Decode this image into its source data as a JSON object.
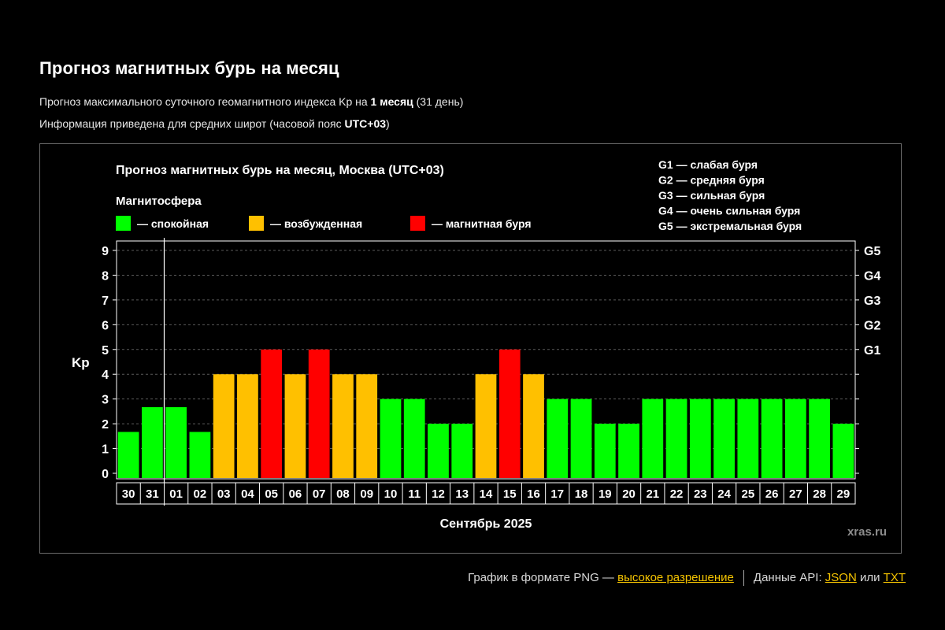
{
  "page": {
    "title": "Прогноз магнитных бурь на месяц",
    "subtitle1": {
      "prefix": "Прогноз максимального суточного геомагнитного индекса Kp на ",
      "bold": "1 месяц",
      "suffix": " (31 день)"
    },
    "subtitle2": {
      "prefix": "Информация приведена для средних широт (часовой пояс ",
      "bold": "UTC+03",
      "suffix": ")"
    }
  },
  "footer": {
    "png_prefix": "График в формате PNG — ",
    "png_link": "высокое разрешение",
    "api_prefix": "Данные API: ",
    "json_link": "JSON",
    "or_text": " или ",
    "txt_link": "TXT"
  },
  "colors": {
    "calm": "#00ff00",
    "active": "#ffc000",
    "storm": "#ff0000",
    "link": "#f5c400",
    "background": "#000000"
  },
  "chart_data": {
    "type": "bar",
    "title": "Прогноз магнитных бурь на месяц, Москва (UTC+03)",
    "ylabel": "Kp",
    "xlabel": "Сентябрь 2025",
    "ylim": [
      0,
      9
    ],
    "yticks": [
      0,
      1,
      2,
      3,
      4,
      5,
      6,
      7,
      8,
      9
    ],
    "grid": true,
    "legend_title": "Магнитосфера",
    "legend": [
      {
        "key": "calm",
        "label": "— спокойная"
      },
      {
        "key": "active",
        "label": "— возбужденная"
      },
      {
        "key": "storm",
        "label": "— магнитная буря"
      }
    ],
    "storm_levels_legend": [
      "G1 — слабая буря",
      "G2 — средняя буря",
      "G3 — сильная буря",
      "G4 — очень сильная буря",
      "G5 — экстремальная буря"
    ],
    "right_axis": [
      {
        "label": "G1",
        "kp": 5
      },
      {
        "label": "G2",
        "kp": 6
      },
      {
        "label": "G3",
        "kp": 7
      },
      {
        "label": "G4",
        "kp": 8
      },
      {
        "label": "G5",
        "kp": 9
      }
    ],
    "month_divider_after": "31",
    "watermark": "xras.ru",
    "categories": [
      "30",
      "31",
      "01",
      "02",
      "03",
      "04",
      "05",
      "06",
      "07",
      "08",
      "09",
      "10",
      "11",
      "12",
      "13",
      "14",
      "15",
      "16",
      "17",
      "18",
      "19",
      "20",
      "21",
      "22",
      "23",
      "24",
      "25",
      "26",
      "27",
      "28",
      "29"
    ],
    "values": [
      1.67,
      2.67,
      2.67,
      1.67,
      4,
      4,
      5,
      4,
      5,
      4,
      4,
      3,
      3,
      2,
      2,
      4,
      5,
      4,
      3,
      3,
      2,
      2,
      3,
      3,
      3,
      3,
      3,
      3,
      3,
      3,
      2
    ],
    "levels": [
      "calm",
      "calm",
      "calm",
      "calm",
      "active",
      "active",
      "storm",
      "active",
      "storm",
      "active",
      "active",
      "calm",
      "calm",
      "calm",
      "calm",
      "active",
      "storm",
      "active",
      "calm",
      "calm",
      "calm",
      "calm",
      "calm",
      "calm",
      "calm",
      "calm",
      "calm",
      "calm",
      "calm",
      "calm",
      "calm"
    ]
  }
}
